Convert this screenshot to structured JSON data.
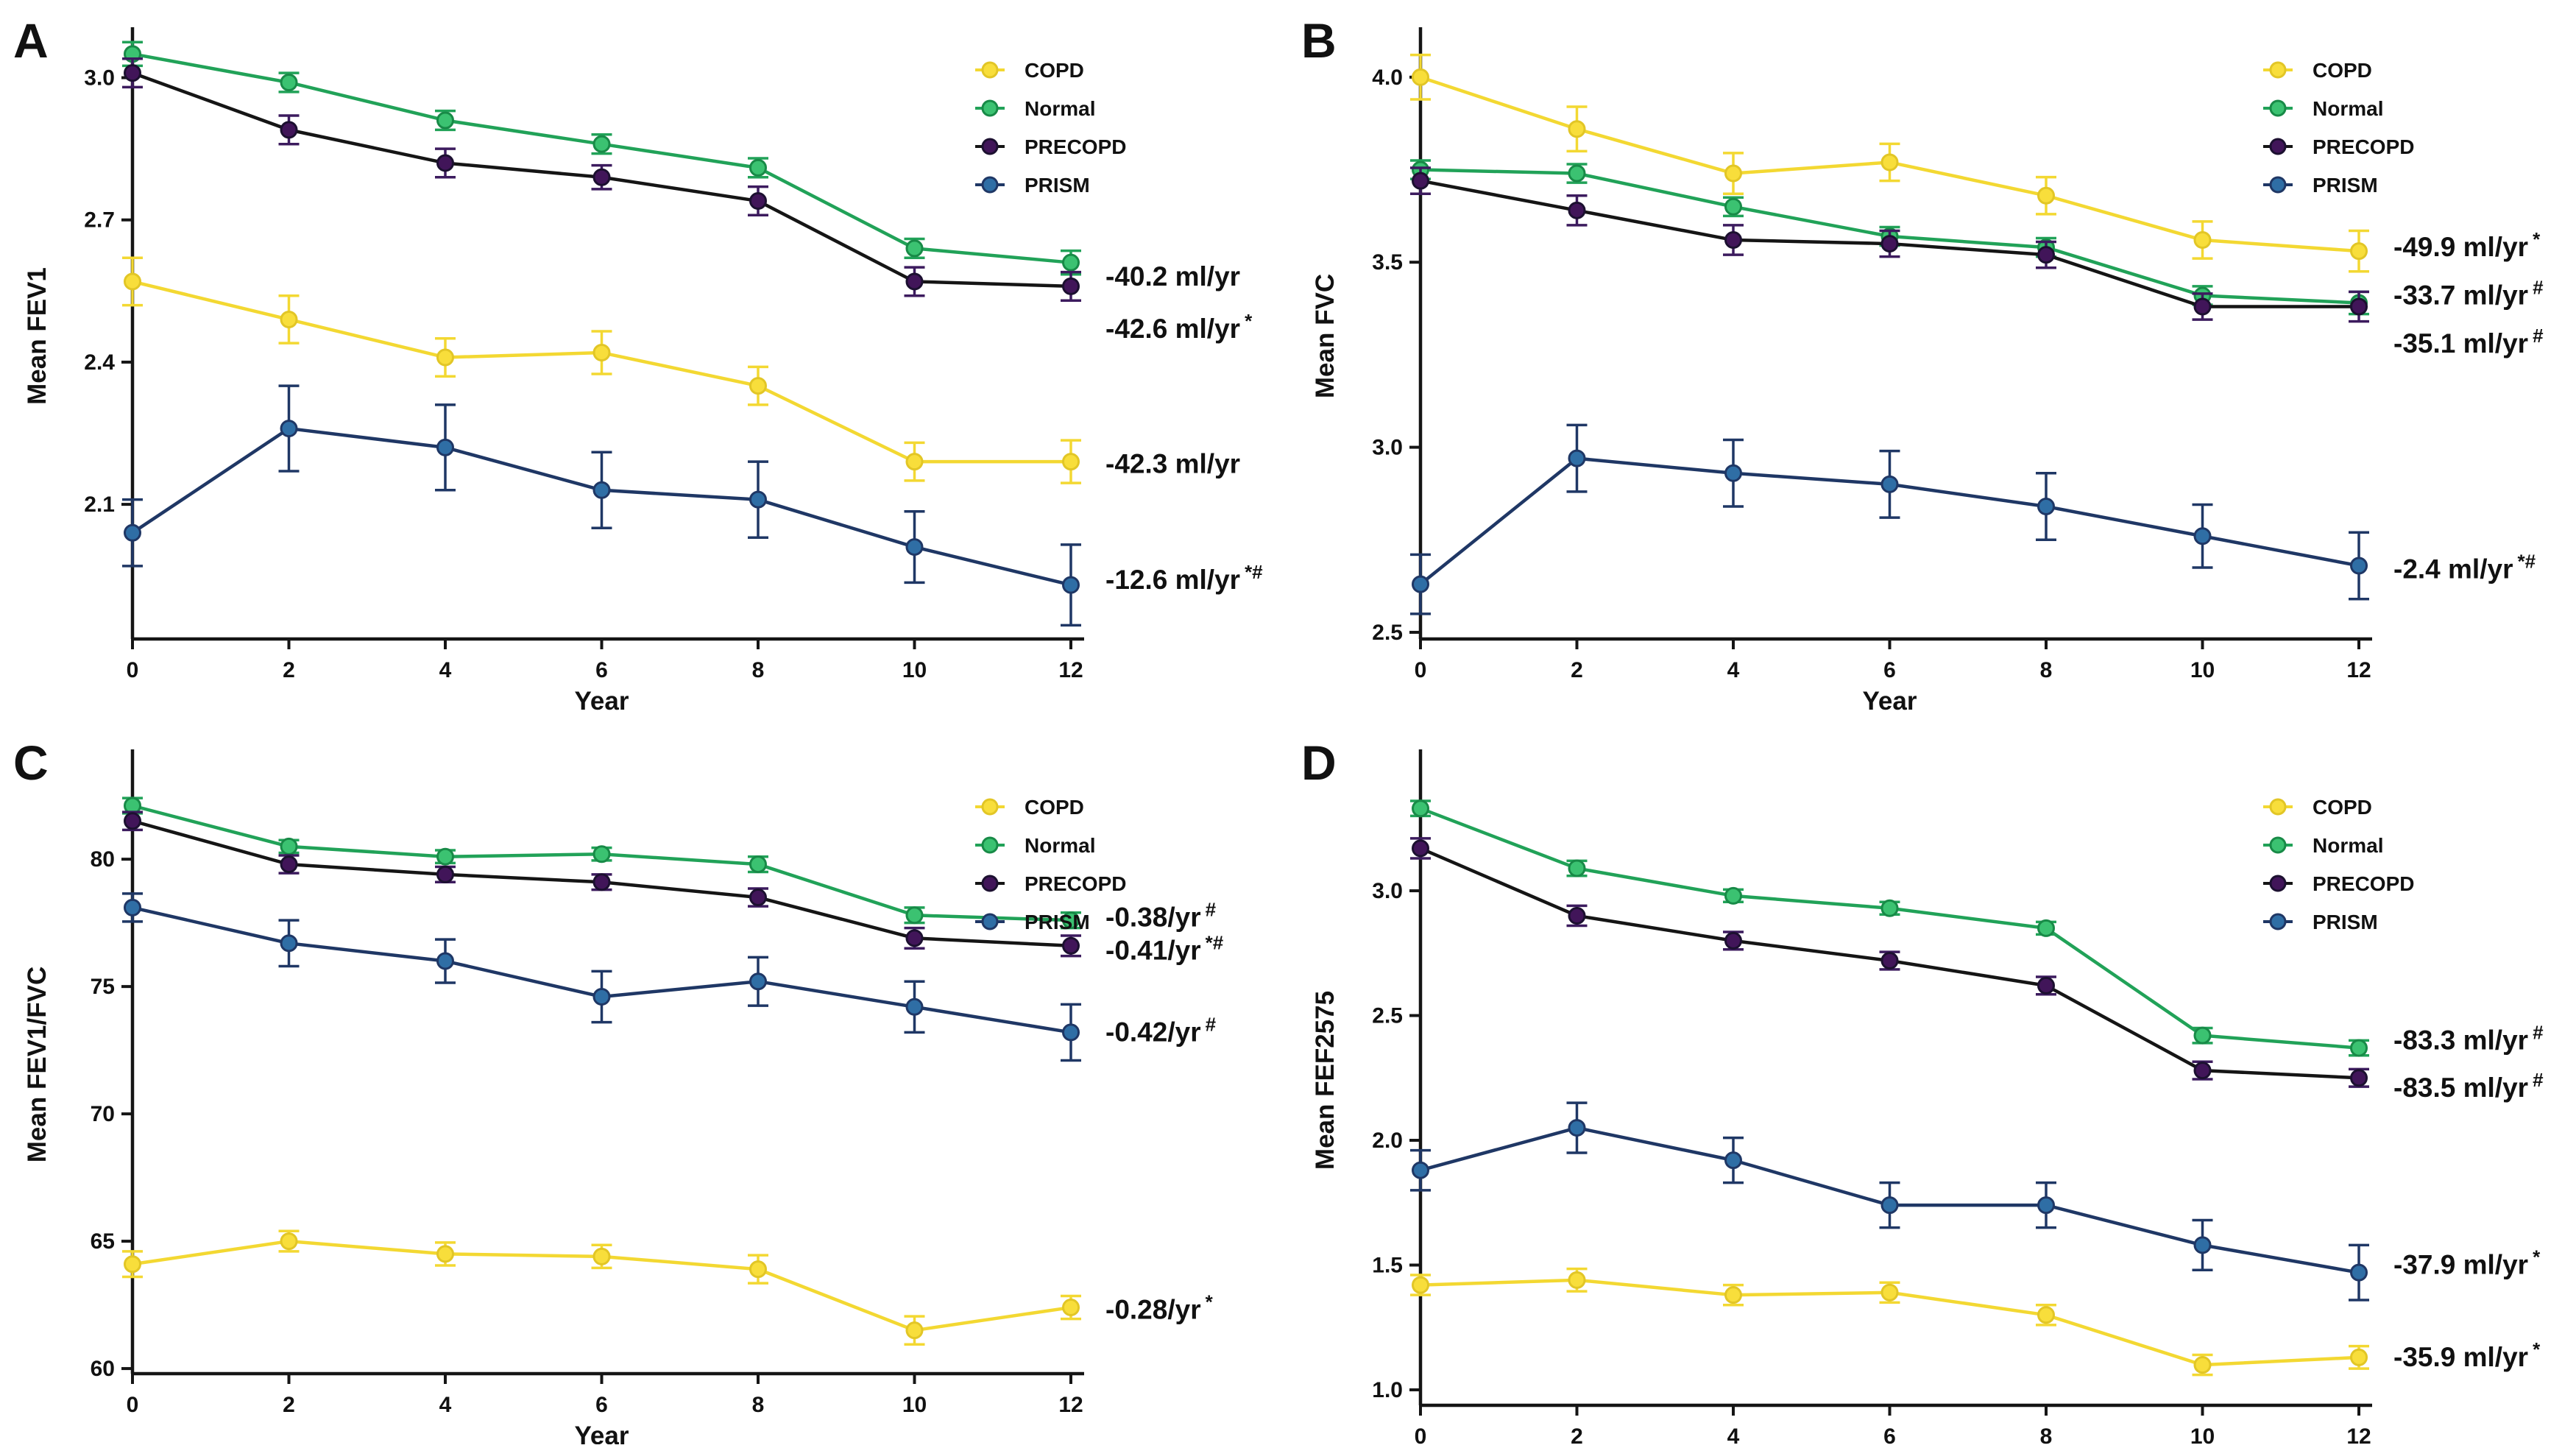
{
  "figure": {
    "background": "#ffffff",
    "xlabel": "Year",
    "x_tick_labels": [
      "0",
      "2",
      "4",
      "6",
      "8",
      "10",
      "12"
    ],
    "x_values": [
      0,
      2,
      4,
      6,
      8,
      10,
      12
    ]
  },
  "series_meta": [
    {
      "name": "COPD",
      "label": "COPD",
      "line": "#F3D832",
      "fill": "#F8DE3B",
      "stroke": "#E2C626"
    },
    {
      "name": "Normal",
      "label": "Normal",
      "line": "#21A258",
      "fill": "#3BC271",
      "stroke": "#188A47"
    },
    {
      "name": "PRECOPD",
      "label": "PRECOPD",
      "line": "#151515",
      "fill": "#411559",
      "stroke": "#1C1030"
    },
    {
      "name": "PRISM",
      "label": "PRISM",
      "line": "#1F3765",
      "fill": "#2F6EA5",
      "stroke": "#1F3765"
    }
  ],
  "chart_data": [
    {
      "panel": "A",
      "type": "line",
      "xlabel": "Year",
      "ylabel": "Mean FEV1",
      "x": [
        0,
        2,
        4,
        6,
        8,
        10,
        12
      ],
      "yticks": [
        2.1,
        2.4,
        2.7,
        3.0
      ],
      "ytick_labels": [
        "2.1",
        "2.4",
        "2.7",
        "3.0"
      ],
      "ylim": [
        1.816,
        3.094
      ],
      "grid": false,
      "legend_position": "top-right-inside",
      "series": [
        {
          "name": "COPD",
          "values": [
            2.57,
            2.49,
            2.41,
            2.42,
            2.35,
            2.19,
            2.19
          ],
          "errors": [
            0.05,
            0.05,
            0.04,
            0.045,
            0.04,
            0.04,
            0.045
          ]
        },
        {
          "name": "Normal",
          "values": [
            3.05,
            2.99,
            2.91,
            2.86,
            2.81,
            2.64,
            2.61
          ],
          "errors": [
            0.025,
            0.02,
            0.02,
            0.02,
            0.02,
            0.02,
            0.025
          ]
        },
        {
          "name": "PRECOPD",
          "values": [
            3.01,
            2.89,
            2.82,
            2.79,
            2.74,
            2.57,
            2.56
          ],
          "errors": [
            0.03,
            0.03,
            0.03,
            0.025,
            0.03,
            0.03,
            0.03
          ]
        },
        {
          "name": "PRISM",
          "values": [
            2.04,
            2.26,
            2.22,
            2.13,
            2.11,
            2.01,
            1.93
          ],
          "errors": [
            0.07,
            0.09,
            0.09,
            0.08,
            0.08,
            0.075,
            0.085
          ]
        }
      ],
      "annotations": [
        {
          "text": "-40.2 ml/yr",
          "sup": "",
          "series": "Normal",
          "value": 2.58
        },
        {
          "text": "-42.6 ml/yr",
          "sup": "*",
          "series": "PRECOPD",
          "value": 2.47
        },
        {
          "text": "-42.3 ml/yr",
          "sup": "",
          "series": "COPD",
          "value": 2.185
        },
        {
          "text": "-12.6 ml/yr",
          "sup": "*#",
          "series": "PRISM",
          "value": 1.94
        }
      ]
    },
    {
      "panel": "B",
      "type": "line",
      "xlabel": "Year",
      "ylabel": "Mean FVC",
      "x": [
        0,
        2,
        4,
        6,
        8,
        10,
        12
      ],
      "yticks": [
        2.5,
        3.0,
        3.5,
        4.0
      ],
      "ytick_labels": [
        "2.5",
        "3.0",
        "3.5",
        "4.0"
      ],
      "ylim": [
        2.482,
        4.119
      ],
      "grid": false,
      "legend_position": "top-right-inside",
      "series": [
        {
          "name": "COPD",
          "values": [
            4.0,
            3.86,
            3.74,
            3.77,
            3.68,
            3.56,
            3.53
          ],
          "errors": [
            0.06,
            0.06,
            0.055,
            0.05,
            0.05,
            0.05,
            0.055
          ]
        },
        {
          "name": "Normal",
          "values": [
            3.75,
            3.74,
            3.65,
            3.57,
            3.54,
            3.41,
            3.39
          ],
          "errors": [
            0.025,
            0.025,
            0.025,
            0.025,
            0.025,
            0.025,
            0.03
          ]
        },
        {
          "name": "PRECOPD",
          "values": [
            3.72,
            3.64,
            3.56,
            3.55,
            3.52,
            3.38,
            3.38
          ],
          "errors": [
            0.035,
            0.04,
            0.04,
            0.035,
            0.035,
            0.035,
            0.04
          ]
        },
        {
          "name": "PRISM",
          "values": [
            2.63,
            2.97,
            2.93,
            2.9,
            2.84,
            2.76,
            2.68
          ],
          "errors": [
            0.08,
            0.09,
            0.09,
            0.09,
            0.09,
            0.085,
            0.09
          ]
        }
      ],
      "annotations": [
        {
          "text": "-49.9 ml/yr",
          "sup": "*",
          "series": "COPD",
          "value": 3.54
        },
        {
          "text": "-33.7 ml/yr",
          "sup": "#",
          "series": "Normal",
          "value": 3.41
        },
        {
          "text": "-35.1 ml/yr",
          "sup": "#",
          "series": "PRECOPD",
          "value": 3.28
        },
        {
          "text": "-2.4 ml/yr",
          "sup": "*#",
          "series": "PRISM",
          "value": 2.67
        }
      ]
    },
    {
      "panel": "C",
      "type": "line",
      "xlabel": "Year",
      "ylabel": "Mean FEV1/FVC",
      "x": [
        0,
        2,
        4,
        6,
        8,
        10,
        12
      ],
      "yticks": [
        60,
        65,
        70,
        75,
        80
      ],
      "ytick_labels": [
        "60",
        "65",
        "70",
        "75",
        "80"
      ],
      "ylim": [
        59.8,
        84.08
      ],
      "grid": false,
      "legend_position": "top-right-inside",
      "series": [
        {
          "name": "COPD",
          "values": [
            64.1,
            65.0,
            64.5,
            64.4,
            63.9,
            61.5,
            62.4
          ],
          "errors": [
            0.5,
            0.4,
            0.45,
            0.45,
            0.55,
            0.55,
            0.45
          ]
        },
        {
          "name": "Normal",
          "values": [
            82.1,
            80.5,
            80.1,
            80.2,
            79.8,
            77.8,
            77.6
          ],
          "errors": [
            0.3,
            0.25,
            0.25,
            0.25,
            0.3,
            0.3,
            0.3
          ]
        },
        {
          "name": "PRECOPD",
          "values": [
            81.5,
            79.8,
            79.4,
            79.1,
            78.5,
            76.9,
            76.6
          ],
          "errors": [
            0.35,
            0.35,
            0.3,
            0.3,
            0.35,
            0.4,
            0.4
          ]
        },
        {
          "name": "PRISM",
          "values": [
            78.1,
            76.7,
            76.0,
            74.6,
            75.2,
            74.2,
            73.2
          ],
          "errors": [
            0.55,
            0.9,
            0.85,
            1.0,
            0.95,
            1.0,
            1.1
          ]
        }
      ],
      "annotations": [
        {
          "text": "-0.38/yr",
          "sup": "#",
          "series": "Normal",
          "value": 77.7
        },
        {
          "text": "-0.41/yr",
          "sup": "*#",
          "series": "PRECOPD",
          "value": 76.4
        },
        {
          "text": "-0.42/yr",
          "sup": "#",
          "series": "PRISM",
          "value": 73.2
        },
        {
          "text": "-0.28/yr",
          "sup": "*",
          "series": "COPD",
          "value": 62.3
        }
      ]
    },
    {
      "panel": "D",
      "type": "line",
      "xlabel": "Year",
      "ylabel": "Mean FEF2575",
      "x": [
        0,
        2,
        4,
        6,
        8,
        10,
        12
      ],
      "yticks": [
        1.0,
        1.5,
        2.0,
        2.5,
        3.0
      ],
      "ytick_labels": [
        "1.0",
        "1.5",
        "2.0",
        "2.5",
        "3.0"
      ],
      "ylim": [
        0.938,
        3.543
      ],
      "grid": false,
      "legend_position": "top-right-inside",
      "series": [
        {
          "name": "COPD",
          "values": [
            1.42,
            1.44,
            1.38,
            1.39,
            1.3,
            1.1,
            1.13
          ],
          "errors": [
            0.04,
            0.045,
            0.04,
            0.04,
            0.04,
            0.04,
            0.045
          ]
        },
        {
          "name": "Normal",
          "values": [
            3.33,
            3.09,
            2.98,
            2.93,
            2.85,
            2.42,
            2.37
          ],
          "errors": [
            0.03,
            0.03,
            0.025,
            0.025,
            0.025,
            0.03,
            0.03
          ]
        },
        {
          "name": "PRECOPD",
          "values": [
            3.17,
            2.9,
            2.8,
            2.72,
            2.62,
            2.28,
            2.25
          ],
          "errors": [
            0.04,
            0.04,
            0.035,
            0.035,
            0.035,
            0.035,
            0.035
          ]
        },
        {
          "name": "PRISM",
          "values": [
            1.88,
            2.05,
            1.92,
            1.74,
            1.74,
            1.58,
            1.47
          ],
          "errors": [
            0.08,
            0.1,
            0.09,
            0.09,
            0.09,
            0.1,
            0.11
          ]
        }
      ],
      "annotations": [
        {
          "text": "-83.3 ml/yr",
          "sup": "#",
          "series": "Normal",
          "value": 2.4
        },
        {
          "text": "-83.5 ml/yr",
          "sup": "#",
          "series": "PRECOPD",
          "value": 2.21
        },
        {
          "text": "-37.9 ml/yr",
          "sup": "*",
          "series": "PRISM",
          "value": 1.5
        },
        {
          "text": "-35.9 ml/yr",
          "sup": "*",
          "series": "COPD",
          "value": 1.13
        }
      ]
    }
  ]
}
